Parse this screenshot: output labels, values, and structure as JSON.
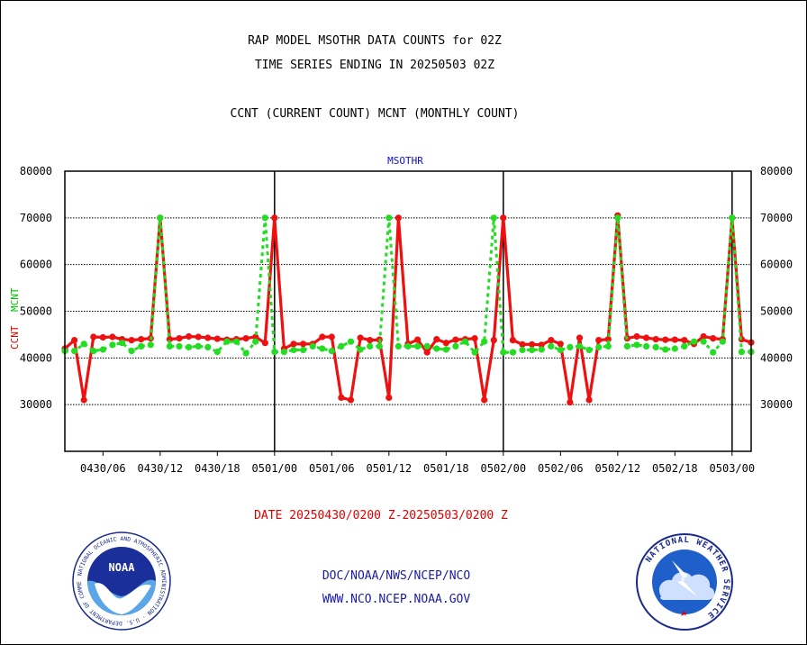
{
  "titles": {
    "line1": "RAP MODEL MSOTHR DATA COUNTS for 02Z",
    "line2": "TIME SERIES ENDING IN 20250503 02Z",
    "line3": "CCNT (CURRENT COUNT) MCNT (MONTHLY COUNT)"
  },
  "panel_label": "MSOTHR",
  "y_axis_labels": {
    "ccnt": "CCNT",
    "mcnt": "MCNT"
  },
  "date_range": "DATE 20250430/0200 Z-20250503/0200 Z",
  "footer": {
    "org": "DOC/NOAA/NWS/NCEP/NCO",
    "url": "WWW.NCO.NCEP.NOAA.GOV"
  },
  "logos": {
    "noaa": {
      "icon": "noaa-seal-icon",
      "center_text": "NOAA",
      "ring_text": "NATIONAL OCEANIC AND ATMOSPHERIC ADMINISTRATION · U.S. DEPARTMENT OF COMMERCE"
    },
    "nws": {
      "icon": "nws-seal-icon",
      "ring_text": "NATIONAL WEATHER SERVICE"
    }
  },
  "colors": {
    "ccnt": "#ee1111",
    "mcnt": "#22dd22",
    "axis": "#000000"
  },
  "chart_data": {
    "type": "line",
    "ylim": [
      20000,
      80000
    ],
    "yticks": [
      30000,
      40000,
      50000,
      60000,
      70000,
      80000
    ],
    "grid": true,
    "x_start_hour": 2,
    "x_end_hour": 74,
    "xticks": [
      {
        "hour": 6,
        "label": "0430/06"
      },
      {
        "hour": 12,
        "label": "0430/12"
      },
      {
        "hour": 18,
        "label": "0430/18"
      },
      {
        "hour": 24,
        "label": "0501/00"
      },
      {
        "hour": 30,
        "label": "0501/06"
      },
      {
        "hour": 36,
        "label": "0501/12"
      },
      {
        "hour": 42,
        "label": "0501/18"
      },
      {
        "hour": 48,
        "label": "0502/00"
      },
      {
        "hour": 54,
        "label": "0502/06"
      },
      {
        "hour": 60,
        "label": "0502/12"
      },
      {
        "hour": 66,
        "label": "0502/18"
      },
      {
        "hour": 72,
        "label": "0503/00"
      }
    ],
    "day_boundaries": [
      24,
      48,
      72
    ],
    "series": [
      {
        "name": "CCNT",
        "values": [
          42000,
          43800,
          31000,
          44500,
          44400,
          44500,
          44000,
          43800,
          44000,
          44200,
          70000,
          44000,
          44200,
          44600,
          44500,
          44300,
          44100,
          43900,
          44000,
          44200,
          44500,
          43200,
          70000,
          42000,
          43000,
          43000,
          43000,
          44500,
          44500,
          31500,
          31000,
          44300,
          43800,
          43900,
          31500,
          70000,
          43000,
          43900,
          41200,
          44000,
          43200,
          43900,
          44000,
          44200,
          31000,
          43800,
          70000,
          43800,
          42900,
          42900,
          42800,
          43800,
          43000,
          30500,
          44300,
          31000,
          43800,
          44000,
          70500,
          44200,
          44600,
          44300,
          44000,
          43900,
          43900,
          43800,
          43000,
          44600,
          44200,
          44000,
          70000,
          44000,
          43300
        ]
      },
      {
        "name": "MCNT",
        "values": [
          41500,
          41500,
          43000,
          41500,
          41800,
          42800,
          43200,
          41500,
          42500,
          42800,
          70000,
          42500,
          42500,
          42300,
          42500,
          42300,
          41300,
          43500,
          43500,
          41000,
          43500,
          70000,
          41300,
          41300,
          41700,
          41700,
          42500,
          42000,
          41500,
          42500,
          43500,
          41800,
          42500,
          42500,
          70000,
          42500,
          42500,
          42500,
          42500,
          42000,
          41800,
          42500,
          43500,
          41200,
          43500,
          70000,
          41200,
          41200,
          41700,
          41700,
          41800,
          42500,
          41700,
          42300,
          42500,
          41700,
          42300,
          42500,
          70000,
          42500,
          42800,
          42500,
          42300,
          41800,
          42000,
          42500,
          43500,
          43500,
          41200,
          43500,
          70000,
          41300,
          41300
        ]
      }
    ]
  }
}
